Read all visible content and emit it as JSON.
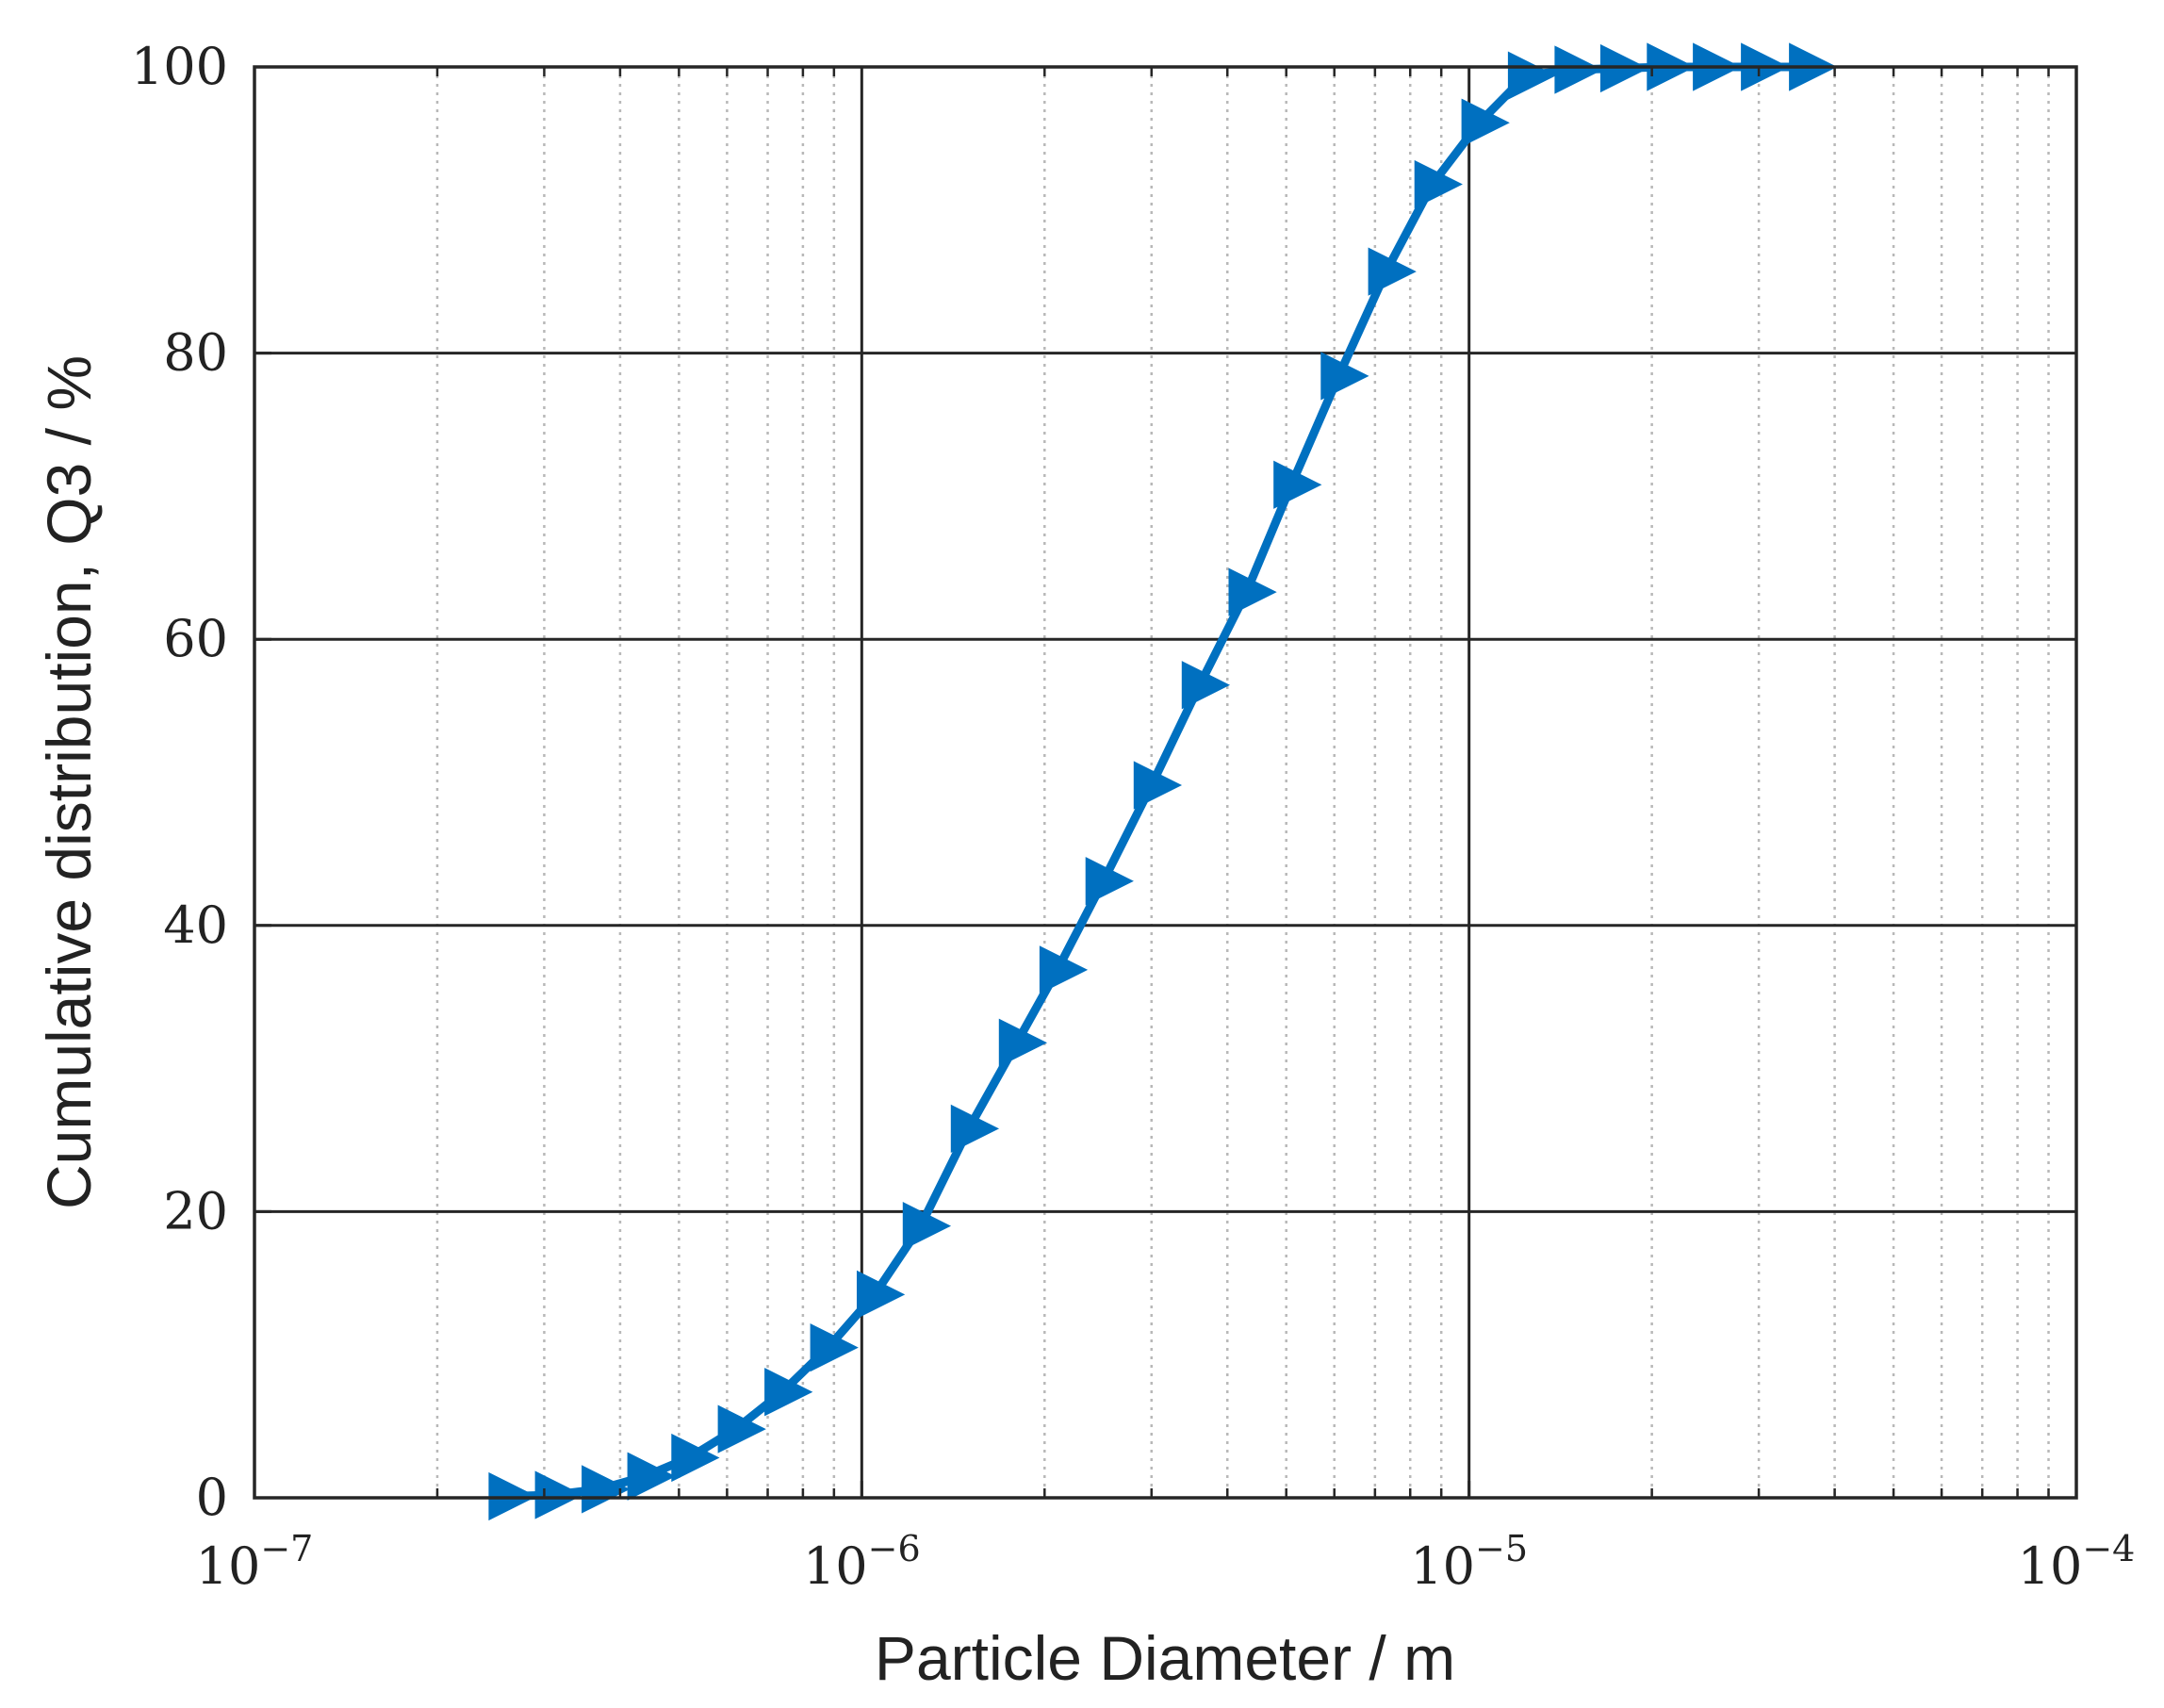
{
  "chart_data": {
    "type": "line",
    "xlabel": "Particle Diameter / m",
    "ylabel": "Cumulative distribution, Q3 / %",
    "xscale": "log",
    "xlim": [
      1e-07,
      0.0001
    ],
    "ylim": [
      0,
      100
    ],
    "grid": true,
    "x_ticks": [
      {
        "value": 1e-07,
        "base": "10",
        "exp": "−7"
      },
      {
        "value": 1e-06,
        "base": "10",
        "exp": "−6"
      },
      {
        "value": 1e-05,
        "base": "10",
        "exp": "−5"
      },
      {
        "value": 0.0001,
        "base": "10",
        "exp": "−4"
      }
    ],
    "y_ticks": [
      "0",
      "20",
      "40",
      "60",
      "80",
      "100"
    ],
    "marker": "triangle-right",
    "series_color": "#0070C0",
    "series": [
      {
        "x": [
          2.6e-07,
          3.1e-07,
          3.7e-07,
          4.4e-07,
          5.2e-07,
          6.2e-07,
          7.4e-07,
          8.8e-07,
          1.05e-06,
          1.25e-06,
          1.5e-06,
          1.8e-06,
          2.1e-06,
          2.5e-06,
          3e-06,
          3.6e-06,
          4.3e-06,
          5.1e-06,
          6.1e-06,
          7.3e-06,
          8.7e-06,
          1.04e-05,
          1.24e-05,
          1.48e-05,
          1.76e-05,
          2.1e-05,
          2.5e-05,
          3e-05,
          3.6e-05
        ],
        "y": [
          0.1,
          0.2,
          0.6,
          1.5,
          2.8,
          4.8,
          7.4,
          10.5,
          14.2,
          19.0,
          25.8,
          31.8,
          36.9,
          43.1,
          49.8,
          56.8,
          63.3,
          70.8,
          78.4,
          85.7,
          91.8,
          96.1,
          99.4,
          99.8,
          99.9,
          100,
          100,
          100,
          100
        ]
      }
    ]
  }
}
